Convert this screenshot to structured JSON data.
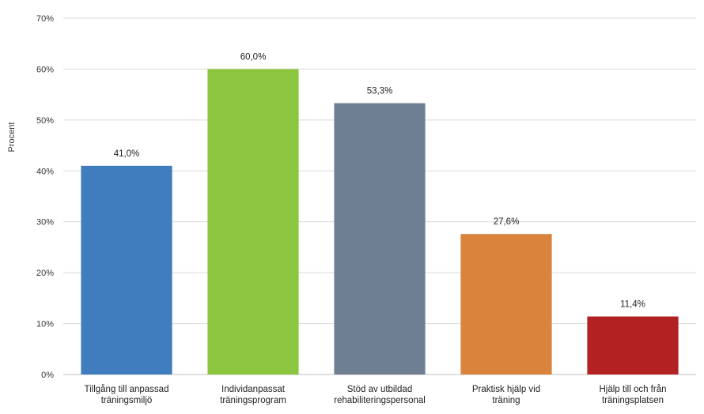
{
  "chart_data": {
    "type": "bar",
    "categories": [
      [
        "Tillgång till anpassad",
        "träningsmiljö"
      ],
      [
        "Individanpassat",
        "träningsprogram"
      ],
      [
        "Stöd av utbildad",
        "rehabiliteringspersonal"
      ],
      [
        "Praktisk hjälp vid",
        "träning"
      ],
      [
        "Hjälp till och från",
        "träningsplatsen"
      ]
    ],
    "values": [
      41.0,
      60.0,
      53.3,
      27.6,
      11.4
    ],
    "value_labels": [
      "41,0%",
      "60,0%",
      "53,3%",
      "27,6%",
      "11,4%"
    ],
    "colors": [
      "#3f7dbf",
      "#8cc63f",
      "#6f7f93",
      "#d9833c",
      "#b22222"
    ],
    "title": "",
    "xlabel": "",
    "ylabel": "Procent",
    "ylim": [
      0,
      70
    ],
    "yticks": [
      0,
      10,
      20,
      30,
      40,
      50,
      60,
      70
    ],
    "ytick_labels": [
      "0%",
      "10%",
      "20%",
      "30%",
      "40%",
      "50%",
      "60%",
      "70%"
    ],
    "grid": true,
    "legend": "none"
  }
}
